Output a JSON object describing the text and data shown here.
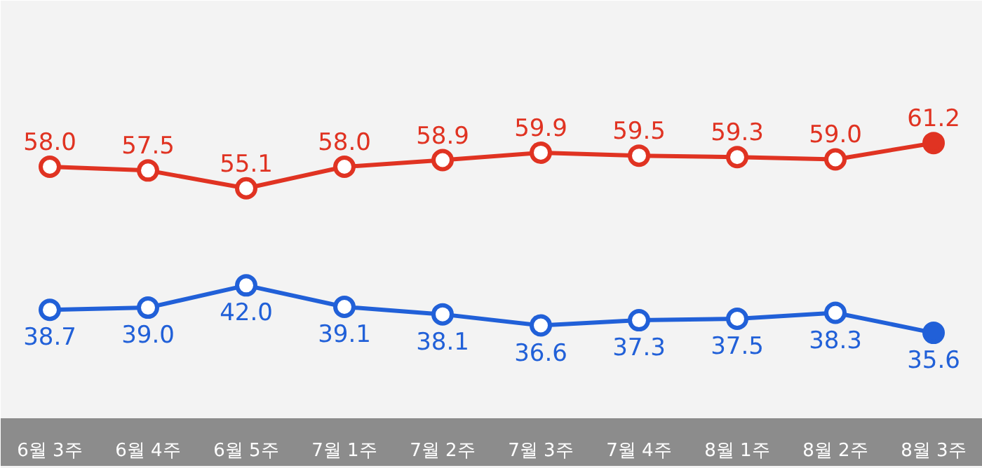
{
  "chart_data": {
    "type": "line",
    "categories": [
      "6월 3주",
      "6월 4주",
      "6월 5주",
      "7월 1주",
      "7월 2주",
      "7월 3주",
      "7월 4주",
      "8월 1주",
      "8월 2주",
      "8월 3주"
    ],
    "series": [
      {
        "color": "#e03322",
        "values": [
          58.0,
          57.5,
          55.1,
          58.0,
          58.9,
          59.9,
          59.5,
          59.3,
          59.0,
          61.2
        ],
        "value_labels": [
          "58.0",
          "57.5",
          "55.1",
          "58.0",
          "58.9",
          "59.9",
          "59.5",
          "59.3",
          "59.0",
          "61.2"
        ]
      },
      {
        "color": "#2160d8",
        "values": [
          38.7,
          39.0,
          42.0,
          39.1,
          38.1,
          36.6,
          37.3,
          37.5,
          38.3,
          35.6
        ],
        "value_labels": [
          "38.7",
          "39.0",
          "42.0",
          "39.1",
          "38.1",
          "36.6",
          "37.3",
          "37.5",
          "38.3",
          "35.6"
        ]
      }
    ],
    "marker": "circle",
    "line_style": "solid",
    "grid": false
  }
}
